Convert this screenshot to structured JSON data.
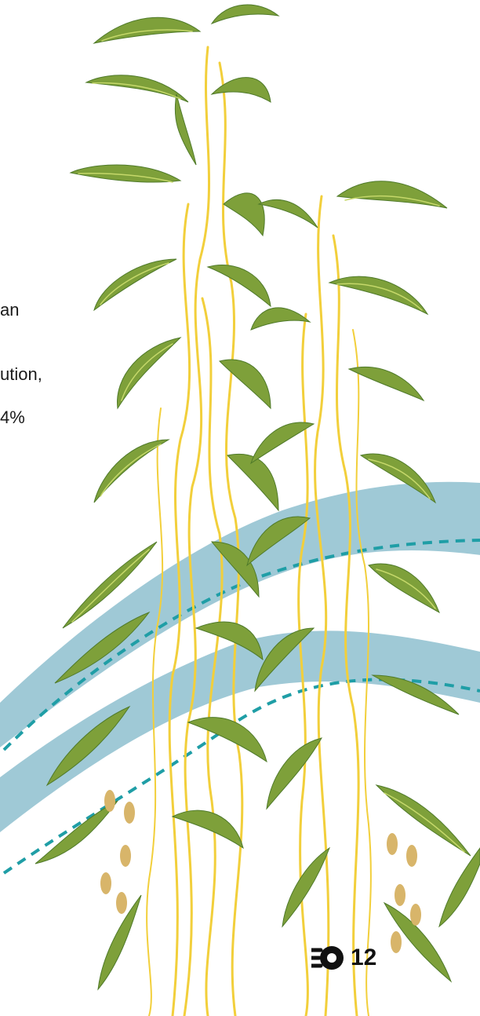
{
  "text_fragments": [
    "an",
    "ution,",
    "4%"
  ],
  "page_number": "12",
  "icon": "emblem-icon",
  "colors": {
    "leaf": "#7ea03a",
    "leaf_dark": "#4f7a2a",
    "leaf_vein": "#c5d86a",
    "stem": "#f2cf3b",
    "seed": "#d8b56a",
    "river": "#9fc9d6",
    "dash": "#1f9ea6",
    "text": "#1a1a1a"
  }
}
